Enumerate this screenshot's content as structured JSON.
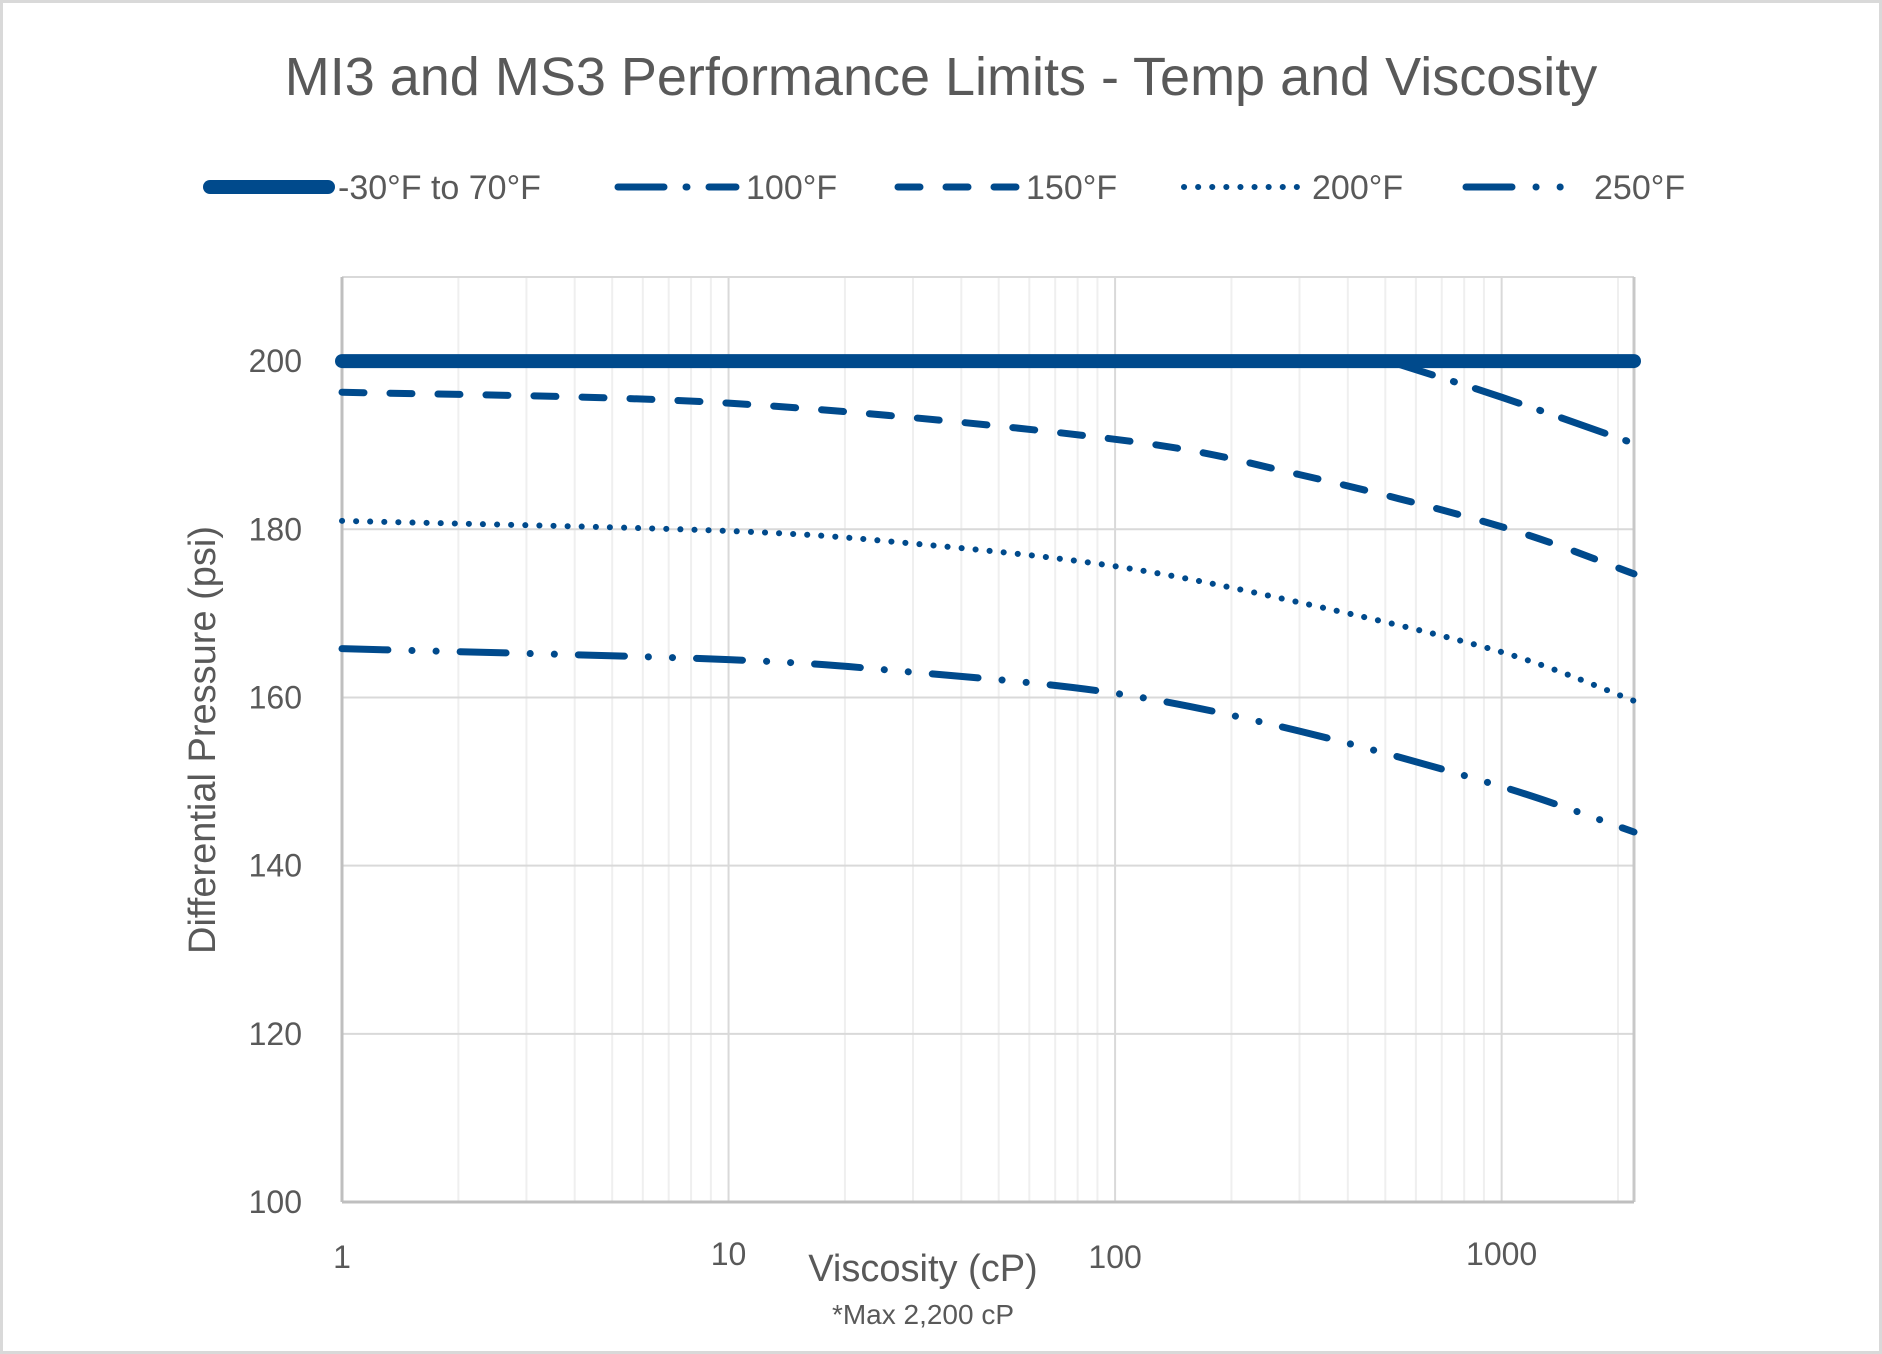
{
  "chart_data": {
    "type": "line",
    "title": "MI3 and MS3 Performance Limits -  Temp and Viscosity",
    "xlabel": "Viscosity (cP)",
    "xnote": "*Max 2,200 cP",
    "ylabel": "Differential Pressure (psi)",
    "xscale": "log",
    "xlim": [
      1,
      2200
    ],
    "ylim": [
      100,
      210
    ],
    "xticks": [
      1,
      10,
      100,
      1000
    ],
    "xtick_labels": [
      "1",
      "10",
      "100",
      "1000"
    ],
    "yticks": [
      100,
      120,
      140,
      160,
      180,
      200
    ],
    "ytick_labels": [
      "100",
      "120",
      "140",
      "160",
      "180",
      "200"
    ],
    "grid": true,
    "legend_position": "top",
    "line_color": "#004a8c",
    "series": [
      {
        "name": "-30°F to 70°F",
        "style": "solid-thick",
        "x": [
          1,
          2200
        ],
        "y": [
          200,
          200
        ]
      },
      {
        "name": "100°F",
        "style": "long-dash-dot",
        "x": [
          510,
          1000,
          2200
        ],
        "y": [
          200,
          195.7,
          190.2
        ]
      },
      {
        "name": "150°F",
        "style": "dash",
        "x": [
          1,
          10,
          100,
          300,
          1000,
          2200
        ],
        "y": [
          196.3,
          195.0,
          190.7,
          186.5,
          180.3,
          174.7
        ]
      },
      {
        "name": "200°F",
        "style": "dot",
        "x": [
          1,
          10,
          30,
          100,
          300,
          1000,
          2200
        ],
        "y": [
          181.0,
          179.8,
          178.3,
          175.6,
          171.3,
          165.4,
          159.6
        ]
      },
      {
        "name": "250°F",
        "style": "long-dash-dot-dot",
        "x": [
          1,
          10,
          30,
          100,
          300,
          1000,
          2200
        ],
        "y": [
          165.8,
          164.5,
          163.0,
          160.5,
          156.0,
          149.4,
          144.0
        ]
      }
    ]
  }
}
